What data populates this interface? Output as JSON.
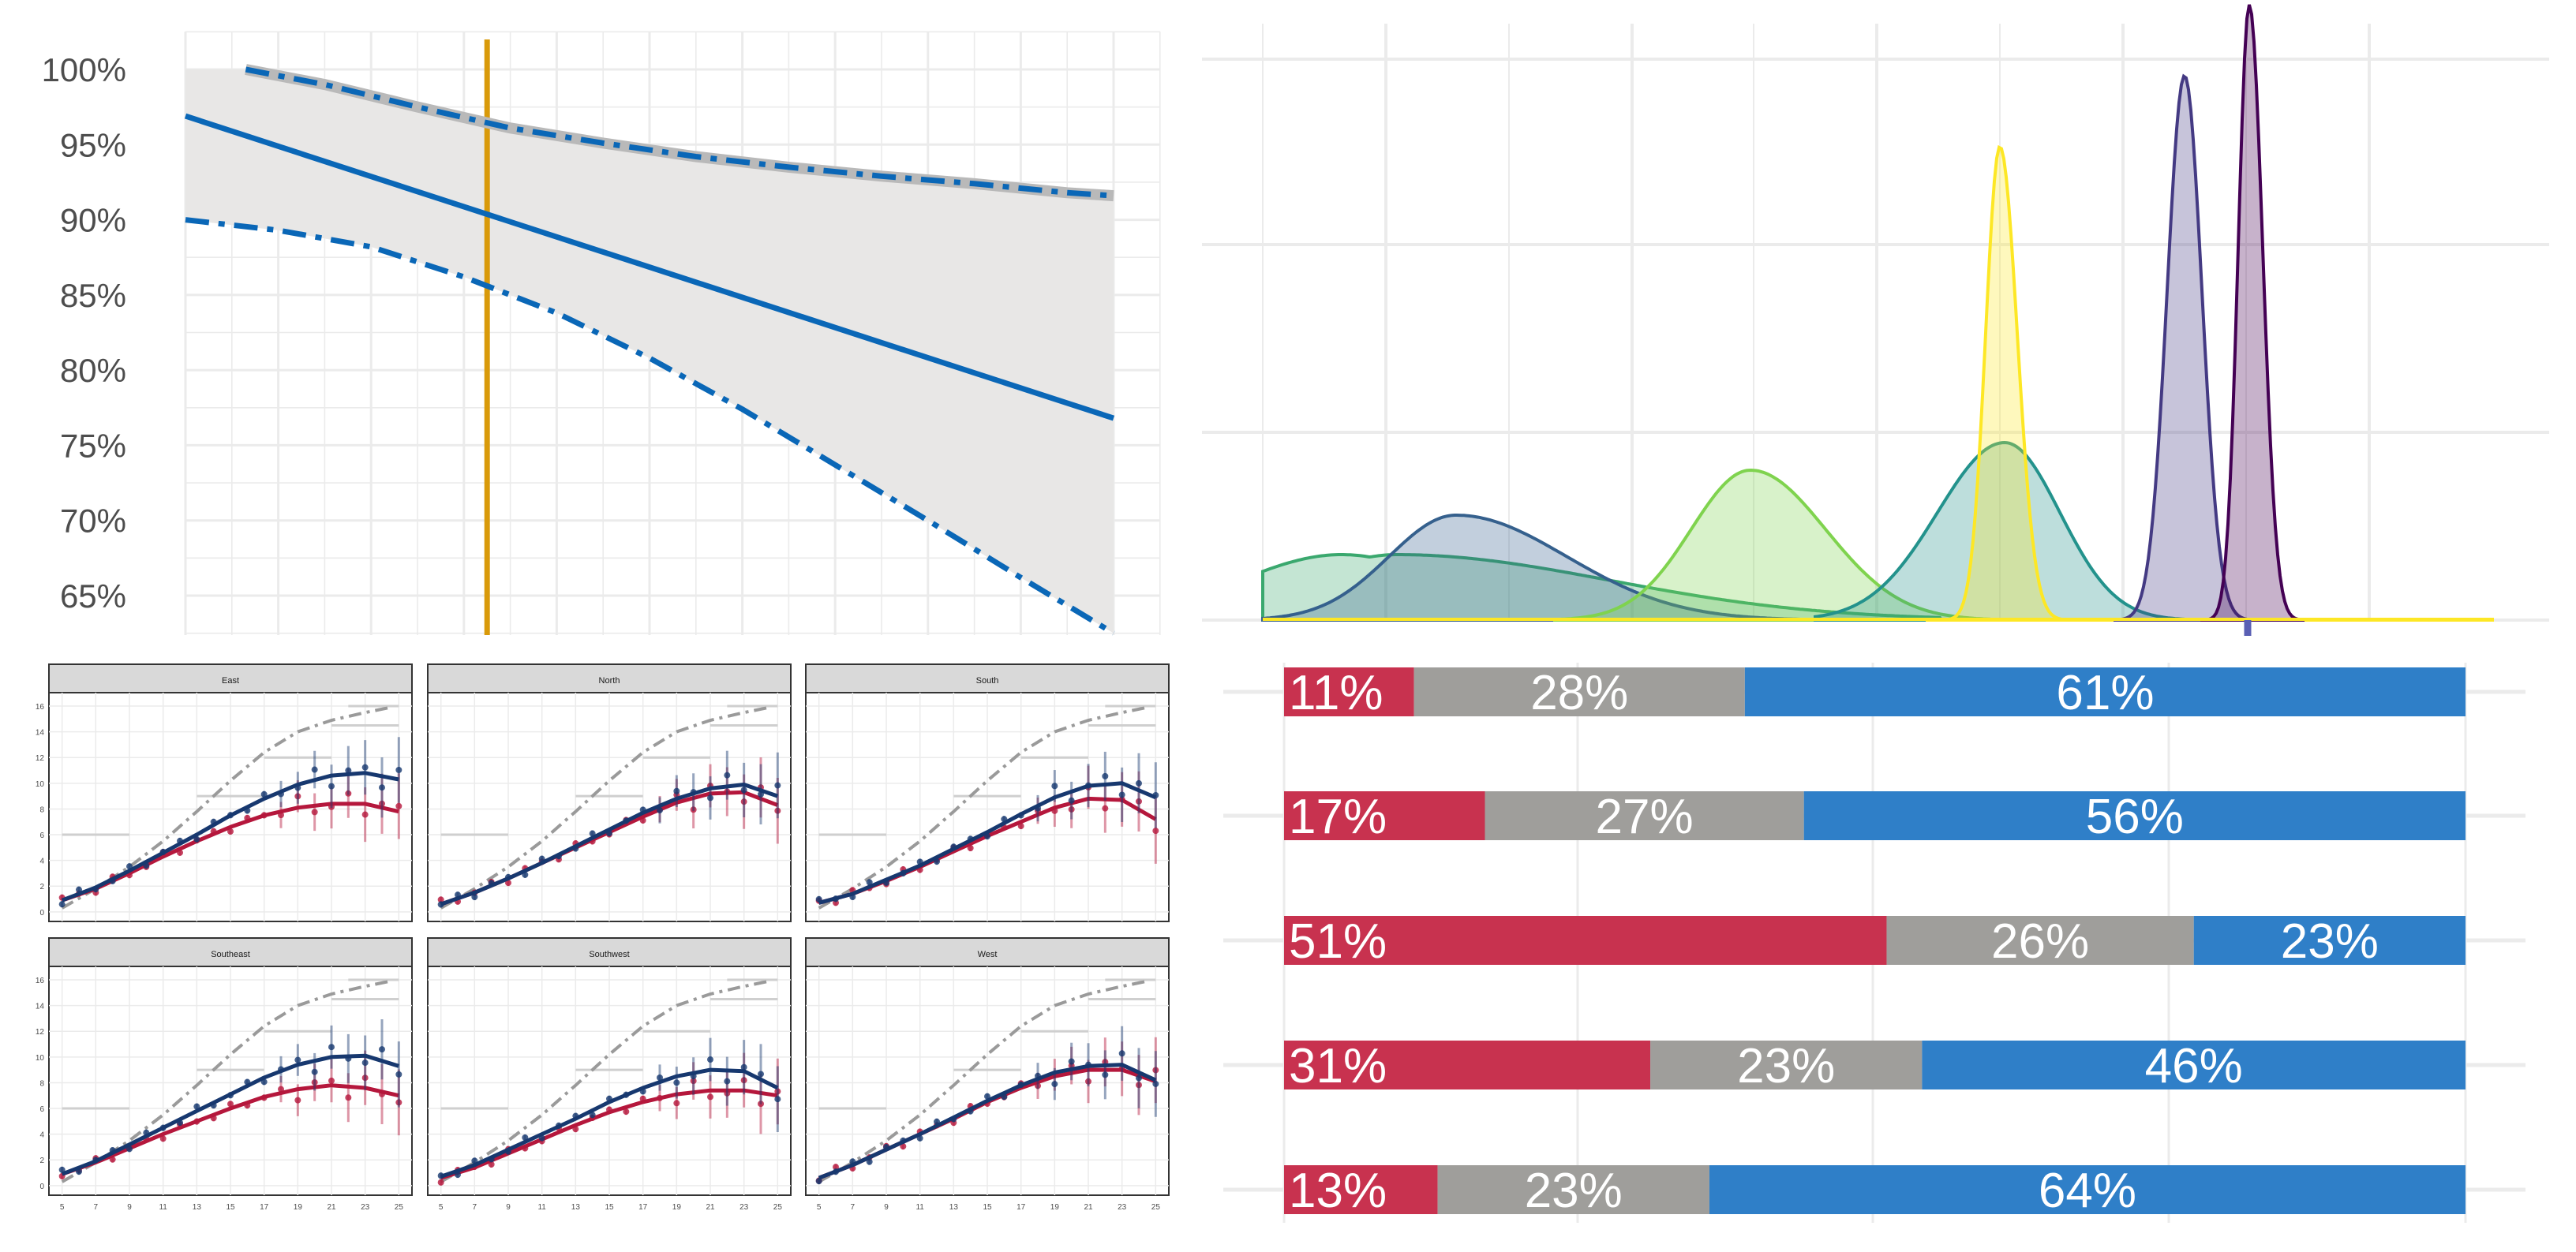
{
  "chart_data": [
    {
      "type": "line",
      "title": "",
      "xlabel": "",
      "ylabel": "",
      "ylim": [
        0.625,
        1.02
      ],
      "xlim": [
        0,
        10.5
      ],
      "yticks": [
        0.65,
        0.7,
        0.75,
        0.8,
        0.85,
        0.9,
        0.95,
        1.0
      ],
      "ytick_labels": [
        "65%",
        "70%",
        "75%",
        "80%",
        "85%",
        "90%",
        "95%",
        "100%"
      ],
      "grid": true,
      "vline_x": 3.25,
      "band": {
        "x": [
          0,
          10
        ],
        "lower": [
          0.9,
          0.625
        ],
        "upper": [
          1.0,
          0.915
        ]
      },
      "series": [
        {
          "style": "solid",
          "x": [
            0,
            10
          ],
          "y": [
            0.969,
            0.768
          ]
        },
        {
          "style": "dashdot-upper",
          "x": [
            0.65,
            1.5,
            2.5,
            3.5,
            4.5,
            5.5,
            6.5,
            7.5,
            8.5,
            9.5,
            10
          ],
          "y": [
            1.0,
            0.99,
            0.975,
            0.961,
            0.951,
            0.942,
            0.935,
            0.929,
            0.924,
            0.918,
            0.916
          ]
        },
        {
          "style": "dashdot-lower",
          "x": [
            0,
            1,
            2,
            3,
            4,
            5,
            6,
            7,
            8,
            9,
            10
          ],
          "y": [
            0.9,
            0.893,
            0.882,
            0.862,
            0.838,
            0.808,
            0.774,
            0.737,
            0.7,
            0.662,
            0.625
          ]
        }
      ],
      "colors": {
        "line": "#0a67b7",
        "band": "#e8e7e6",
        "upper_halo": "#b9b9b9",
        "vline": "#d99a0a",
        "grid": "#ebebeb"
      }
    },
    {
      "type": "area",
      "title": "",
      "xlim": [
        0,
        10.5
      ],
      "ylim": [
        0,
        1.0
      ],
      "grid": true,
      "marker_x": 8.35,
      "series": [
        {
          "color": "#3aa86e",
          "peak_x": 0.95,
          "peak": 0.11,
          "shape": "wide"
        },
        {
          "color": "#35608d",
          "peak_x": 1.3,
          "peak": 0.16,
          "shape": "medium"
        },
        {
          "color": "#7fd34e",
          "peak_x": 2.1,
          "peak": 0.24,
          "shape": "medium"
        },
        {
          "color": "#23928c",
          "peak_x": 3.0,
          "peak": 0.29,
          "shape": "medium"
        },
        {
          "color": "#fde725",
          "peak_x": 3.1,
          "peak": 0.77,
          "shape": "narrow"
        },
        {
          "color": "#443a83",
          "peak_x": 3.85,
          "peak": 0.87,
          "shape": "narrow"
        },
        {
          "color": "#440154",
          "peak_x": 4.1,
          "peak": 1.0,
          "shape": "very-narrow"
        }
      ]
    },
    {
      "type": "line",
      "title": "",
      "panels": [
        "East",
        "North",
        "South",
        "Southeast",
        "Southwest",
        "West"
      ],
      "xticks": [
        5,
        7,
        9,
        11,
        13,
        15,
        17,
        19,
        21,
        23,
        25
      ],
      "yticks": [
        0,
        2,
        4,
        6,
        8,
        10,
        12,
        14,
        16
      ],
      "xlim": [
        4.5,
        25.5
      ],
      "ylim": [
        -0.5,
        16.8
      ],
      "reference_dashdot": {
        "x": [
          5,
          7,
          9,
          11,
          13,
          15,
          17,
          19,
          21,
          23,
          24.5
        ],
        "y": [
          0.3,
          1.8,
          3.5,
          5.5,
          7.8,
          10.2,
          12.4,
          14.0,
          14.9,
          15.5,
          15.9
        ]
      },
      "series_colors": {
        "blue": "#17386f",
        "red": "#b5173c",
        "dashdot": "#9a9a9a"
      },
      "curves": {
        "East": {
          "blue": [
            0.9,
            1.9,
            3.2,
            4.6,
            6.0,
            7.5,
            8.8,
            9.9,
            10.6,
            10.8,
            10.3
          ],
          "red": [
            0.9,
            1.8,
            3.0,
            4.3,
            5.5,
            6.6,
            7.5,
            8.1,
            8.4,
            8.4,
            7.8
          ]
        },
        "North": {
          "blue": [
            0.6,
            1.5,
            2.6,
            3.8,
            5.1,
            6.4,
            7.7,
            8.8,
            9.6,
            9.9,
            9.0
          ],
          "red": [
            0.6,
            1.5,
            2.6,
            3.8,
            5.0,
            6.2,
            7.4,
            8.5,
            9.2,
            9.3,
            8.3
          ]
        },
        "South": {
          "blue": [
            0.7,
            1.4,
            2.5,
            3.6,
            4.9,
            6.2,
            7.6,
            8.9,
            9.8,
            10.0,
            8.9
          ],
          "red": [
            0.7,
            1.4,
            2.4,
            3.5,
            4.7,
            5.9,
            7.0,
            8.1,
            8.8,
            8.7,
            7.2
          ]
        },
        "Southeast": {
          "blue": [
            0.9,
            1.9,
            3.2,
            4.5,
            5.8,
            7.1,
            8.4,
            9.4,
            10.0,
            10.1,
            9.3
          ],
          "red": [
            0.9,
            1.8,
            2.9,
            4.0,
            5.0,
            6.0,
            6.9,
            7.5,
            7.8,
            7.6,
            7.0
          ]
        },
        "Southwest": {
          "blue": [
            0.7,
            1.6,
            2.8,
            4.0,
            5.2,
            6.5,
            7.6,
            8.5,
            9.0,
            8.9,
            7.6
          ],
          "red": [
            0.6,
            1.4,
            2.5,
            3.6,
            4.7,
            5.7,
            6.5,
            7.1,
            7.4,
            7.4,
            7.0
          ]
        },
        "West": {
          "blue": [
            0.6,
            1.6,
            2.8,
            4.0,
            5.3,
            6.6,
            7.8,
            8.8,
            9.3,
            9.4,
            8.2
          ],
          "red": [
            0.6,
            1.6,
            2.8,
            4.0,
            5.2,
            6.5,
            7.6,
            8.5,
            9.0,
            9.0,
            8.1
          ]
        }
      }
    },
    {
      "type": "bar",
      "stacked": true,
      "orientation": "horizontal",
      "title": "",
      "colors": [
        "#c8324f",
        "#9f9e9b",
        "#2f7fc8"
      ],
      "rows": [
        {
          "values": [
            11,
            28,
            61
          ],
          "labels": [
            "11%",
            "28%",
            "61%"
          ]
        },
        {
          "values": [
            17,
            27,
            56
          ],
          "labels": [
            "17%",
            "27%",
            "56%"
          ]
        },
        {
          "values": [
            51,
            26,
            23
          ],
          "labels": [
            "51%",
            "26%",
            "23%"
          ]
        },
        {
          "values": [
            31,
            23,
            46
          ],
          "labels": [
            "31%",
            "23%",
            "46%"
          ]
        },
        {
          "values": [
            13,
            23,
            64
          ],
          "labels": [
            "13%",
            "23%",
            "64%"
          ]
        }
      ]
    }
  ]
}
